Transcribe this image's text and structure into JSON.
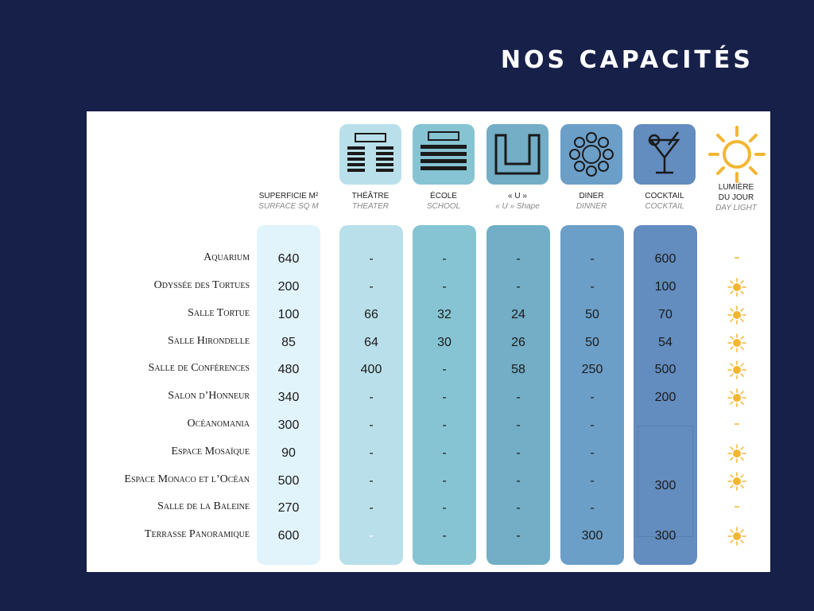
{
  "title": "NOS CAPACITÉS",
  "headers": {
    "area": {
      "fr": "SUPERFICIE M²",
      "en": "SURFACE SQ M"
    },
    "theatre": {
      "fr": "THÉÂTRE",
      "en": "THEATER"
    },
    "ecole": {
      "fr": "ÉCOLE",
      "en": "SCHOOL"
    },
    "u": {
      "fr": "« U »",
      "en": "« U » Shape"
    },
    "diner": {
      "fr": "DINER",
      "en": "DINNER"
    },
    "cocktail": {
      "fr": "COCKTAIL",
      "en": "COCKTAIL"
    },
    "daylight": {
      "fr1": "LUMIÈRE",
      "fr2": "DU JOUR",
      "en": "DAY LIGHT"
    }
  },
  "rows": [
    {
      "name": "Aquarium",
      "area": "640",
      "theatre": "-",
      "ecole": "-",
      "u": "-",
      "diner": "-",
      "cocktail": "600",
      "daylight": false
    },
    {
      "name": "Odyssée des Tortues",
      "area": "200",
      "theatre": "-",
      "ecole": "-",
      "u": "-",
      "diner": "-",
      "cocktail": "100",
      "daylight": true
    },
    {
      "name": "Salle Tortue",
      "area": "100",
      "theatre": "66",
      "ecole": "32",
      "u": "24",
      "diner": "50",
      "cocktail": "70",
      "daylight": true
    },
    {
      "name": "Salle Hirondelle",
      "area": "85",
      "theatre": "64",
      "ecole": "30",
      "u": "26",
      "diner": "50",
      "cocktail": "54",
      "daylight": true
    },
    {
      "name": "Salle de Conférences",
      "area": "480",
      "theatre": "400",
      "ecole": "-",
      "u": "58",
      "diner": "250",
      "cocktail": "500",
      "daylight": true
    },
    {
      "name": "Salon d’Honneur",
      "area": "340",
      "theatre": "-",
      "ecole": "-",
      "u": "-",
      "diner": "-",
      "cocktail": "200",
      "daylight": true
    },
    {
      "name": "Océanomania",
      "area": "300",
      "theatre": "-",
      "ecole": "-",
      "u": "-",
      "diner": "-",
      "cocktail": "",
      "daylight": false
    },
    {
      "name": "Espace Mosaïque",
      "area": "90",
      "theatre": "-",
      "ecole": "-",
      "u": "-",
      "diner": "-",
      "cocktail": "",
      "daylight": true
    },
    {
      "name": "Espace Monaco et l’Océan",
      "area": "500",
      "theatre": "-",
      "ecole": "-",
      "u": "-",
      "diner": "-",
      "cocktail": "300",
      "daylight": true
    },
    {
      "name": "Salle de la Baleine",
      "area": "270",
      "theatre": "-",
      "ecole": "-",
      "u": "-",
      "diner": "-",
      "cocktail": "",
      "daylight": false
    },
    {
      "name": "Terrasse Panoramique",
      "area": "600",
      "theatre": "-",
      "ecole": "-",
      "u": "-",
      "diner": "300",
      "cocktail": "300",
      "daylight": true
    }
  ],
  "colors": {
    "background": "#172049",
    "sun": "#f2b632"
  }
}
